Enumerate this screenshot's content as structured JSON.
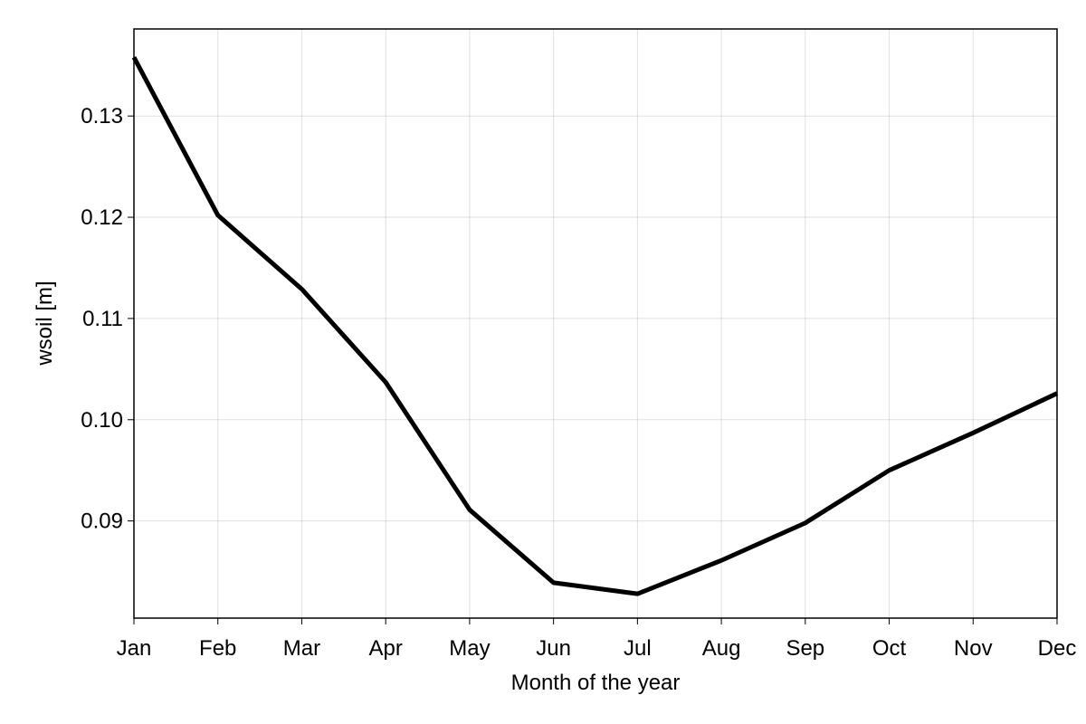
{
  "chart_data": {
    "type": "line",
    "title": "",
    "xlabel": "Month of the year",
    "ylabel": "wsoil [m]",
    "categories": [
      "Jan",
      "Feb",
      "Mar",
      "Apr",
      "May",
      "Jun",
      "Jul",
      "Aug",
      "Sep",
      "Oct",
      "Nov",
      "Dec"
    ],
    "series": [
      {
        "values": [
          0.1358,
          0.1202,
          0.1129,
          0.1037,
          0.0911,
          0.0839,
          0.0828,
          0.0861,
          0.0898,
          0.095,
          0.0987,
          0.1026
        ],
        "color": "#000000"
      }
    ],
    "yticks": [
      0.09,
      0.1,
      0.11,
      0.12,
      0.13
    ],
    "ytick_labels": [
      "0.09",
      "0.10",
      "0.11",
      "0.12",
      "0.13"
    ],
    "ylim": [
      0.0804,
      0.1386
    ],
    "grid": true,
    "legend": "none"
  }
}
